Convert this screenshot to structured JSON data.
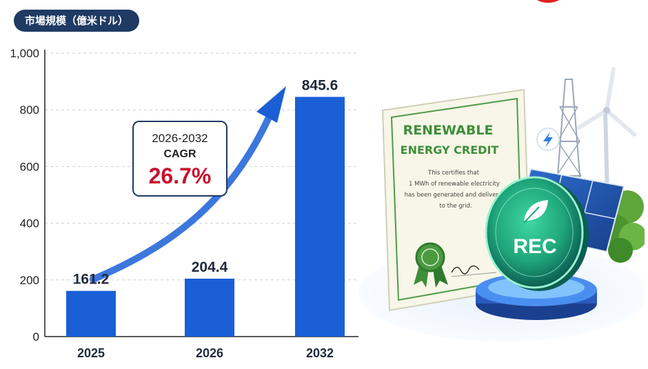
{
  "title": "市場規模（億米ドル）",
  "chart_data": {
    "type": "bar",
    "categories": [
      "2025",
      "2026",
      "2032"
    ],
    "values": [
      161.2,
      204.4,
      845.6
    ],
    "value_labels": [
      "161.2",
      "204.4",
      "845.6"
    ],
    "title": "市場規模（億米ドル）",
    "xlabel": "",
    "ylabel": "",
    "ylim": [
      0,
      1000
    ],
    "yticks": [
      0,
      200,
      400,
      600,
      800,
      1000
    ],
    "ytick_labels": [
      "0",
      "200",
      "400",
      "600",
      "800",
      "1,000"
    ],
    "grid": true,
    "bar_color": "#1a5fd6",
    "annotation": {
      "period": "2026-2032",
      "label": "CAGR",
      "value": "26.7%"
    }
  },
  "illustration": {
    "certificate_title_1": "RENEWABLE",
    "certificate_title_2": "ENERGY CREDIT",
    "certificate_text": [
      "This certifies that",
      "1 MWh of renewable electricity",
      "has been generated and delivered",
      "to the grid."
    ],
    "coin_label": "REC",
    "icons": [
      "lightning-icon",
      "leaf-icon",
      "wind-turbine-icon",
      "solar-panel-icon",
      "seal-icon"
    ]
  },
  "colors": {
    "accent": "#1a5fd6",
    "title_bg": "#1f3a63",
    "cagr_red": "#c8102e",
    "certificate_green": "#3f8f3a",
    "coin_green": "#1fa67a"
  }
}
